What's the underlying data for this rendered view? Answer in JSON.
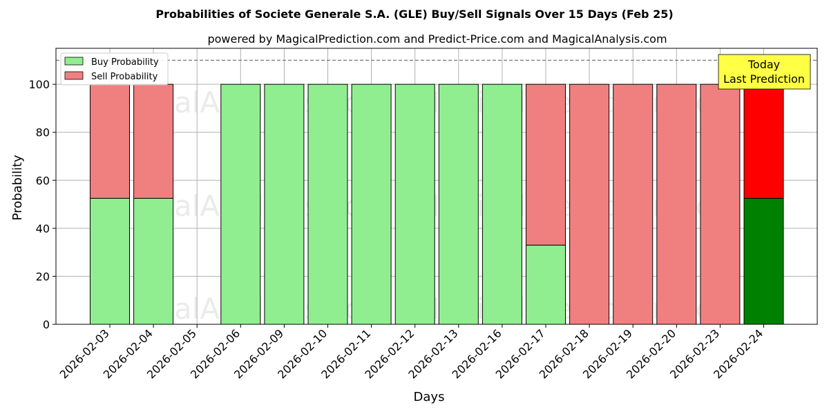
{
  "chart_data": {
    "type": "bar",
    "stacked": true,
    "title": "Probabilities of Societe Generale S.A. (GLE) Buy/Sell Signals Over 15 Days (Feb 25)",
    "subtitle": "powered by MagicalPrediction.com and Predict-Price.com and MagicalAnalysis.com",
    "xlabel": "Days",
    "ylabel": "Probability",
    "ylim": [
      0,
      115
    ],
    "yticks": [
      0,
      20,
      40,
      60,
      80,
      100
    ],
    "reference_line": 110,
    "grid": true,
    "legend_position": "top-left",
    "categories": [
      "2026-02-03",
      "2026-02-04",
      "2026-02-05",
      "2026-02-06",
      "2026-02-09",
      "2026-02-10",
      "2026-02-11",
      "2026-02-12",
      "2026-02-13",
      "2026-02-16",
      "2026-02-17",
      "2026-02-18",
      "2026-02-19",
      "2026-02-20",
      "2026-02-23",
      "2026-02-24"
    ],
    "series": [
      {
        "name": "Buy Probability",
        "color": "#90ee90",
        "highlight_color": "#008000",
        "values": [
          52.5,
          52.5,
          0,
          100,
          100,
          100,
          100,
          100,
          100,
          100,
          33,
          0,
          0,
          0,
          0,
          52.5
        ]
      },
      {
        "name": "Sell Probability",
        "color": "#f08080",
        "highlight_color": "#ff0000",
        "values": [
          47.5,
          47.5,
          0,
          0,
          0,
          0,
          0,
          0,
          0,
          0,
          67,
          100,
          100,
          100,
          100,
          47.5
        ]
      }
    ],
    "highlight_category": "2026-02-24",
    "annotation": {
      "line1": "Today",
      "line2": "Last Prediction",
      "background": "#ffff44"
    },
    "watermarks": [
      "MagicalAnalysis.com",
      "MagicalPrediction.com"
    ]
  }
}
